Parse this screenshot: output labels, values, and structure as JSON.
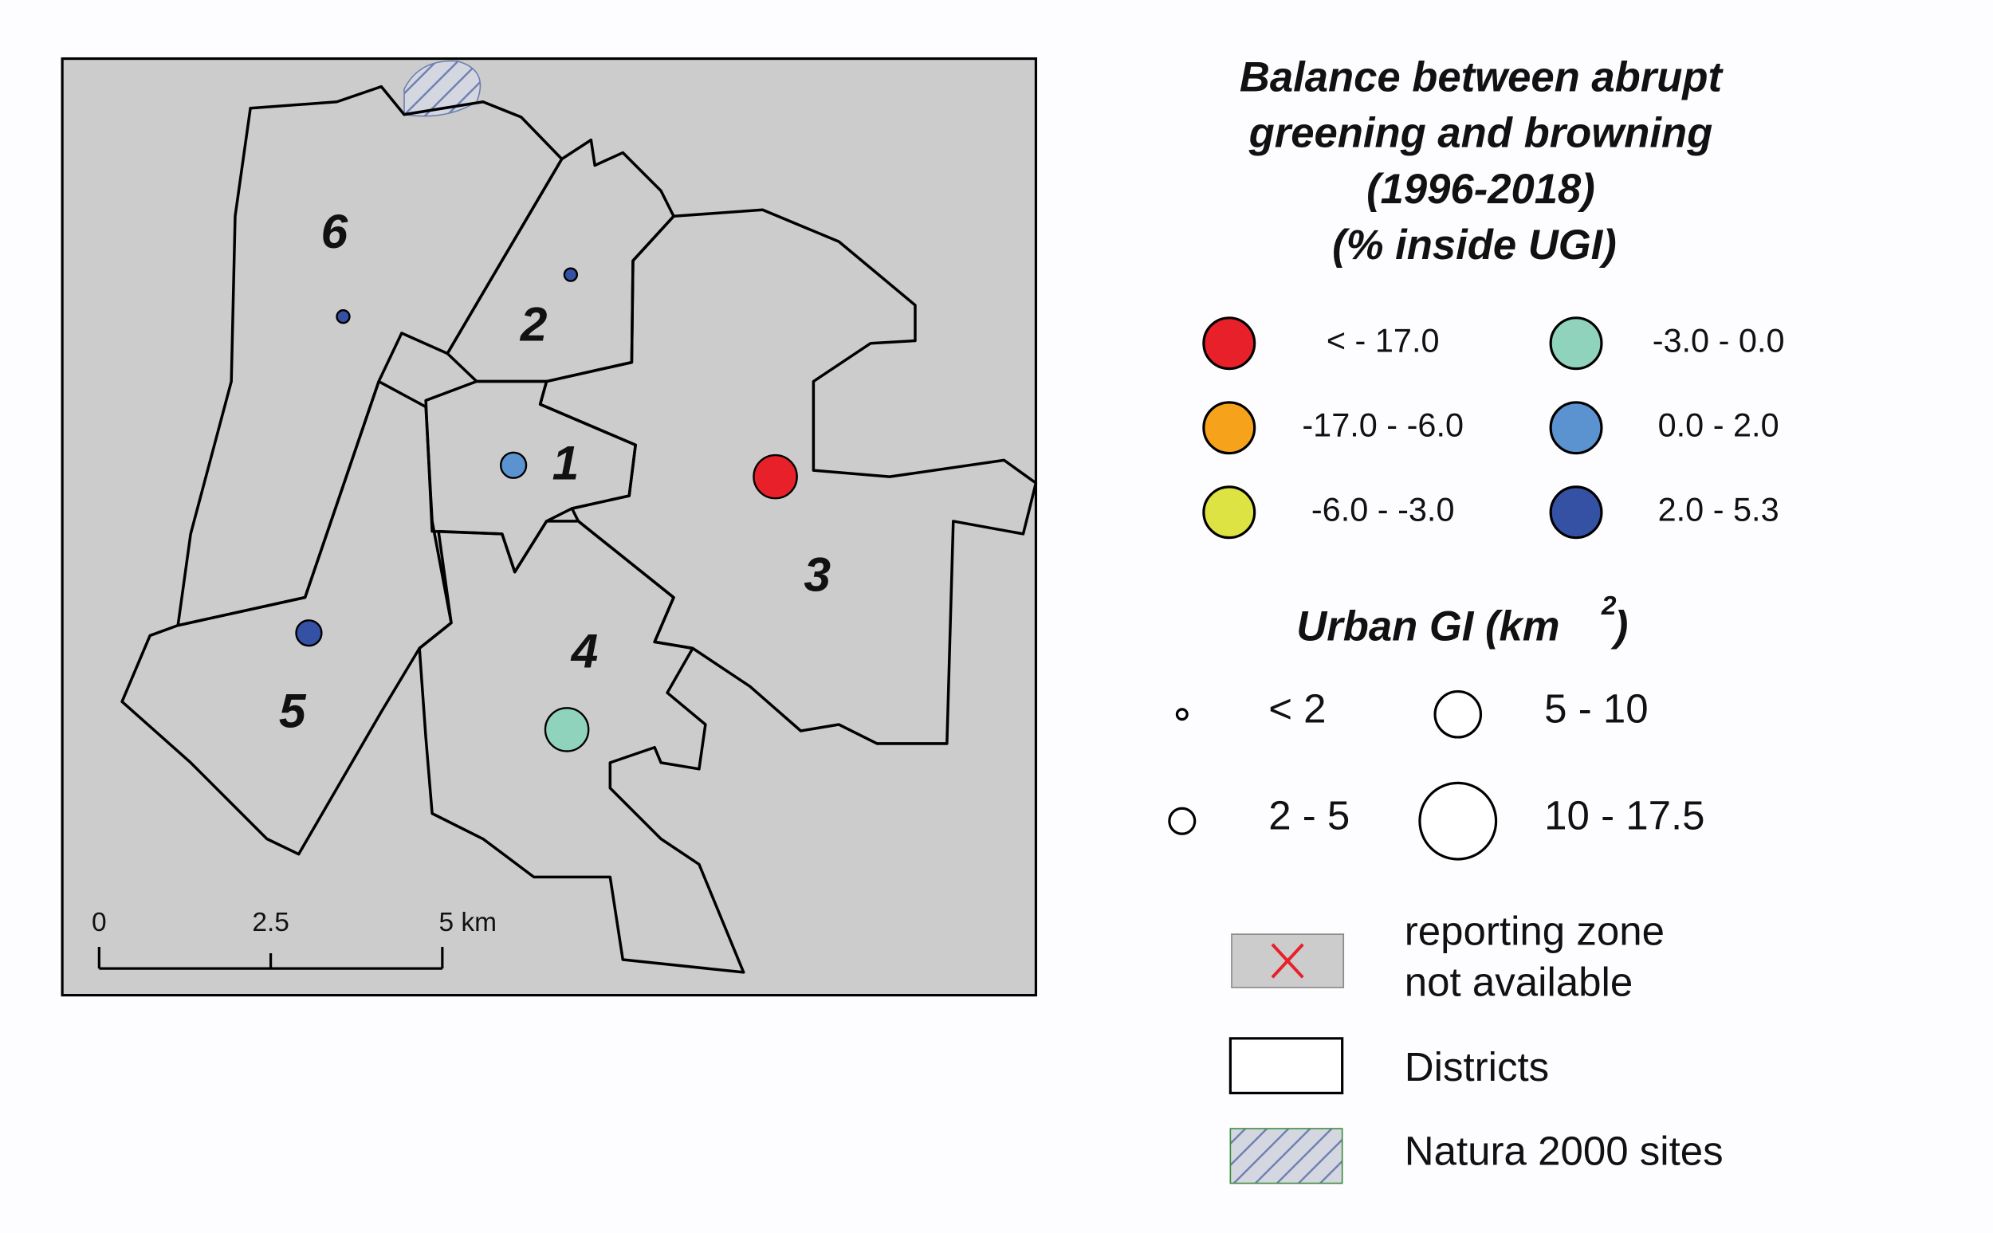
{
  "map": {
    "districts": [
      "1",
      "2",
      "3",
      "4",
      "5",
      "6"
    ],
    "scale_bar": [
      "0",
      "2.5",
      "5 km"
    ]
  },
  "legend": {
    "balance": {
      "title": [
        "Balance between abrupt",
        "greening and browning",
        "(1996-2018)",
        "(% inside UGI)"
      ],
      "classes": [
        {
          "label": "< - 17.0",
          "color": "#e8202a"
        },
        {
          "label": "-17.0 - -6.0",
          "color": "#f7a21b"
        },
        {
          "label": "-6.0 - -3.0",
          "color": "#dde343"
        },
        {
          "label": "-3.0 - 0.0",
          "color": "#8fd3bd"
        },
        {
          "label": "0.0 - 2.0",
          "color": "#5b93d0"
        },
        {
          "label": "2.0 - 5.3",
          "color": "#3551a4"
        }
      ]
    },
    "size": {
      "title": [
        "Urban GI (km",
        "2",
        ")"
      ],
      "classes": [
        "< 2",
        "2 - 5",
        "5 - 10",
        "10 - 17.5"
      ]
    },
    "other": {
      "not_available": [
        "reporting zone",
        "not available"
      ],
      "districts": "Districts",
      "natura": "Natura 2000 sites"
    }
  }
}
